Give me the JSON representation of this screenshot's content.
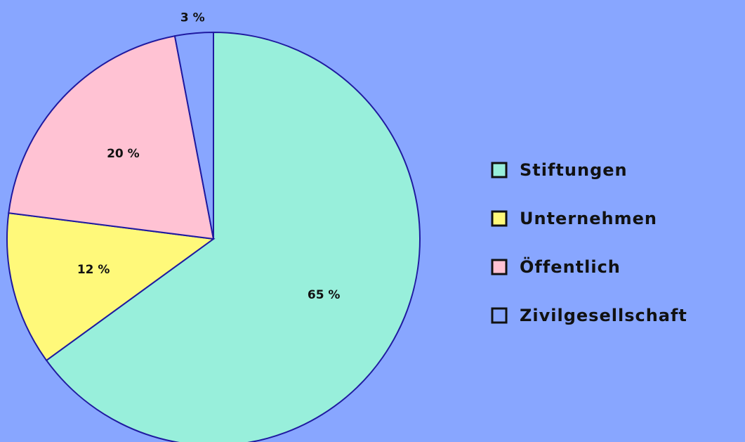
{
  "chart_data": {
    "type": "pie",
    "categories": [
      "Stiftungen",
      "Unternehmen",
      "Öffentlich",
      "Zivilgesellschaft"
    ],
    "values": [
      65,
      12,
      20,
      3
    ],
    "value_labels": [
      "65 %",
      "12 %",
      "20 %",
      "3 %"
    ],
    "colors": [
      "#98efdb",
      "#fff97a",
      "#ffc2d3",
      "#88a6ff"
    ],
    "legend": "right"
  }
}
